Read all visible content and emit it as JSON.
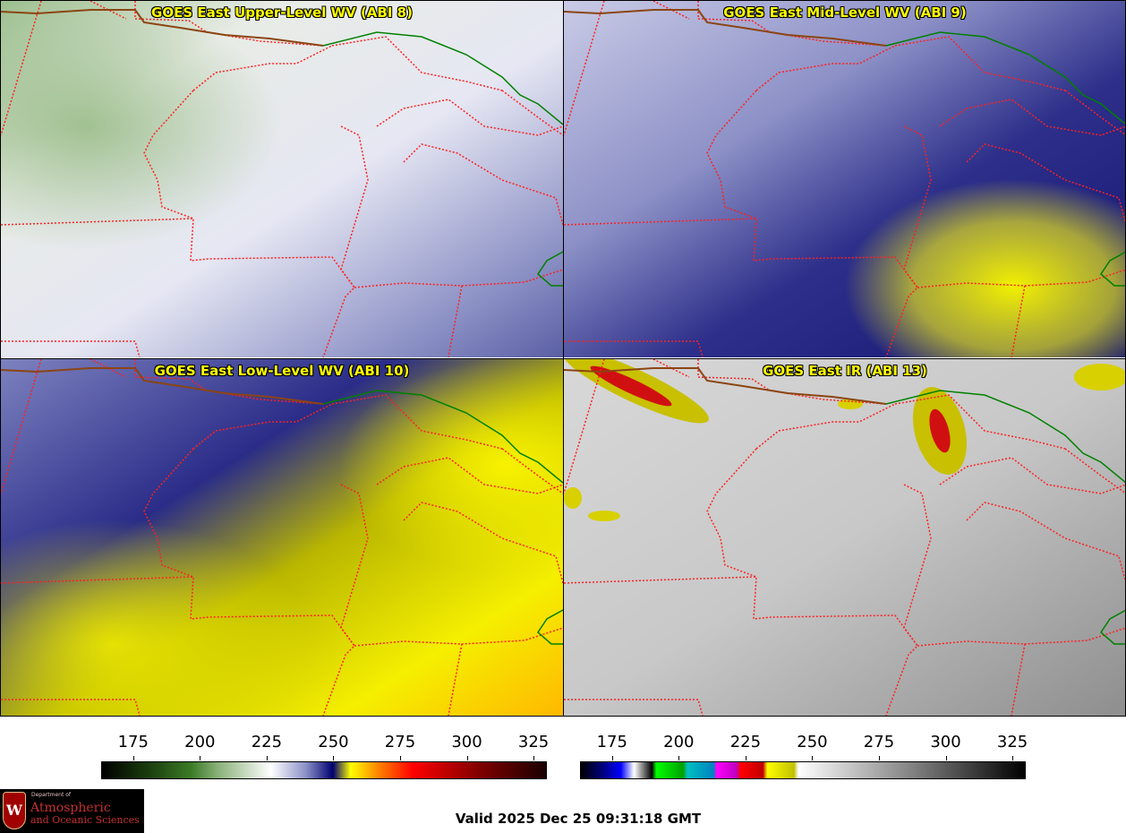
{
  "panels": [
    {
      "title": "GOES East Upper-Level WV (ABI 8)",
      "palette": "wv-upper"
    },
    {
      "title": "GOES East Mid-Level WV (ABI 9)",
      "palette": "wv-mid"
    },
    {
      "title": "GOES East Low-Level WV (ABI 10)",
      "palette": "wv-low"
    },
    {
      "title": "GOES East IR (ABI 13)",
      "palette": "ir"
    }
  ],
  "colorbar_wv": {
    "ticks": [
      "175",
      "200",
      "225",
      "250",
      "275",
      "300",
      "325"
    ],
    "min": 163,
    "max": 330
  },
  "colorbar_ir": {
    "ticks": [
      "175",
      "200",
      "225",
      "250",
      "275",
      "300",
      "325"
    ],
    "min": 163,
    "max": 330
  },
  "logo": {
    "dept": "Department of",
    "line1": "Atmospheric",
    "line2": "and Oceanic Sciences",
    "shield": "W"
  },
  "valid_time": "Valid 2025 Dec 25 09:31:18 GMT",
  "colors": {
    "title_text": "#ffff00",
    "state_border": "#ff2020",
    "country_border": "#8b4513",
    "canada_border": "#008000"
  }
}
